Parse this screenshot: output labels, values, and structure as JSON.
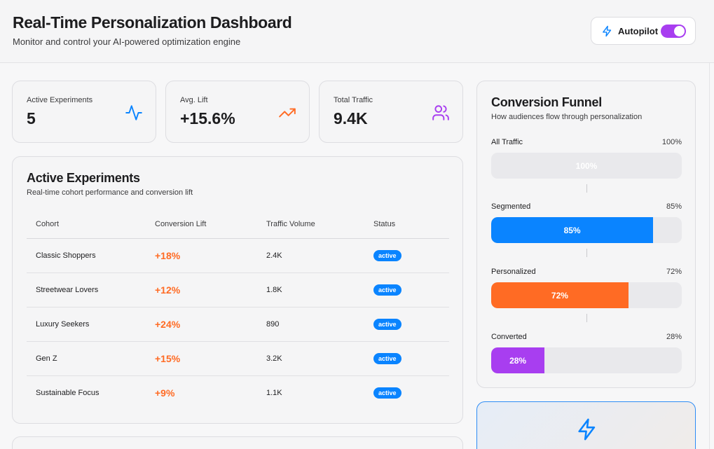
{
  "header": {
    "title": "Real-Time Personalization Dashboard",
    "subtitle": "Monitor and control your AI-powered optimization engine",
    "autopilot_label": "Autopilot",
    "autopilot_on": true
  },
  "stats": [
    {
      "label": "Active Experiments",
      "value": "5",
      "icon": "activity-icon",
      "color": "#0a84ff"
    },
    {
      "label": "Avg. Lift",
      "value": "+15.6%",
      "icon": "trending-up-icon",
      "color": "#ff6b24"
    },
    {
      "label": "Total Traffic",
      "value": "9.4K",
      "icon": "users-icon",
      "color": "#a83ef0"
    }
  ],
  "experiments": {
    "title": "Active Experiments",
    "subtitle": "Real-time cohort performance and conversion lift",
    "columns": [
      "Cohort",
      "Conversion Lift",
      "Traffic Volume",
      "Status"
    ],
    "rows": [
      {
        "cohort": "Classic Shoppers",
        "lift": "+18%",
        "traffic": "2.4K",
        "status": "active"
      },
      {
        "cohort": "Streetwear Lovers",
        "lift": "+12%",
        "traffic": "1.8K",
        "status": "active"
      },
      {
        "cohort": "Luxury Seekers",
        "lift": "+24%",
        "traffic": "890",
        "status": "active"
      },
      {
        "cohort": "Gen Z",
        "lift": "+15%",
        "traffic": "3.2K",
        "status": "active"
      },
      {
        "cohort": "Sustainable Focus",
        "lift": "+9%",
        "traffic": "1.1K",
        "status": "active"
      }
    ]
  },
  "funnel": {
    "title": "Conversion Funnel",
    "subtitle": "How audiences flow through personalization",
    "stages": [
      {
        "name": "All Traffic",
        "pct_label": "100%",
        "value": 100,
        "color": "#e9e9ec"
      },
      {
        "name": "Segmented",
        "pct_label": "85%",
        "value": 85,
        "color": "#0a84ff"
      },
      {
        "name": "Personalized",
        "pct_label": "72%",
        "value": 72,
        "color": "#ff6b24"
      },
      {
        "name": "Converted",
        "pct_label": "28%",
        "value": 28,
        "color": "#a83ef0"
      }
    ]
  },
  "colors": {
    "accent_blue": "#0a84ff",
    "accent_orange": "#ff6b24",
    "accent_purple": "#a83ef0"
  }
}
